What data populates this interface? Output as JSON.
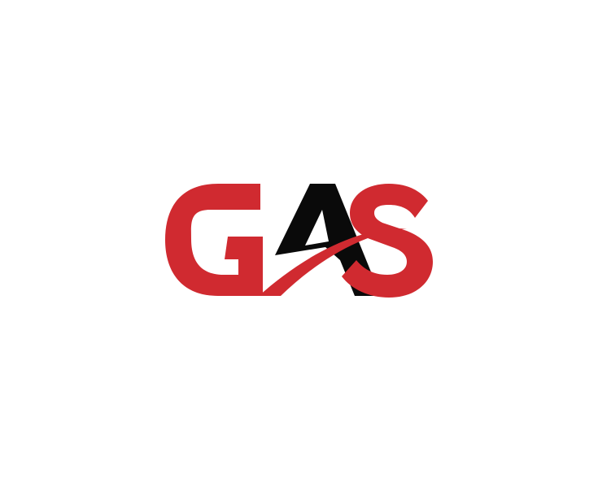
{
  "logo": {
    "text": "GAS",
    "colors": {
      "primary_red": "#d02a30",
      "accent_black": "#0a0a0a",
      "background": "#ffffff"
    }
  }
}
